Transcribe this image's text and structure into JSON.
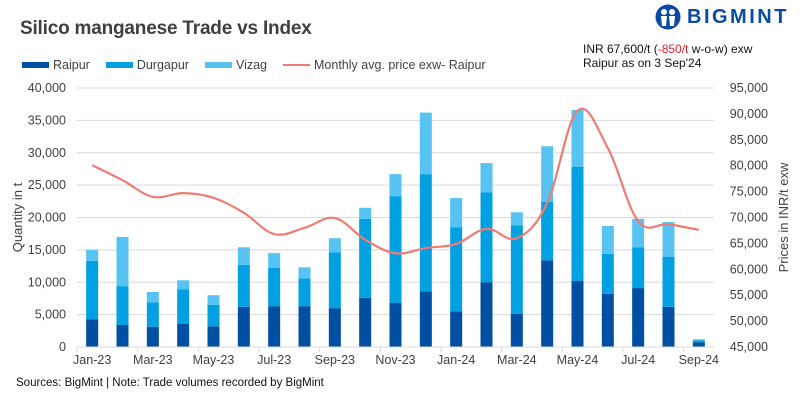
{
  "header": {
    "title": "Silico manganese Trade vs Index",
    "logo_text": "BIGMINT",
    "note_line1_prefix": "INR 67,600/t (",
    "note_line1_change": "-850/t",
    "note_line1_suffix": " w-o-w) exw",
    "note_line2": "Raipur as on 3 Sep'24"
  },
  "footer": {
    "text": "Sources: BigMint | Note: Trade volumes recorded by BigMint"
  },
  "colors": {
    "raipur": "#004fa3",
    "durgapur": "#00a0e3",
    "vizag": "#56c3f2",
    "price_line": "#f07b72",
    "brand": "#0a4aa6",
    "grid": "#d9d9d9"
  },
  "chart_data": {
    "type": "bar",
    "stacked": true,
    "title": "Silico manganese Trade vs Index",
    "categories": [
      "Jan-23",
      "Feb-23",
      "Mar-23",
      "Apr-23",
      "May-23",
      "Jun-23",
      "Jul-23",
      "Aug-23",
      "Sep-23",
      "Oct-23",
      "Nov-23",
      "Dec-23",
      "Jan-24",
      "Feb-24",
      "Mar-24",
      "Apr-24",
      "May-24",
      "Jun-24",
      "Jul-24",
      "Aug-24",
      "Sep-24"
    ],
    "x_tick_labels": [
      "Jan-23",
      "Mar-23",
      "May-23",
      "Jul-23",
      "Sep-23",
      "Nov-23",
      "Jan-24",
      "Mar-24",
      "May-24",
      "Jul-24",
      "Sep-24"
    ],
    "series": [
      {
        "name": "Raipur",
        "type": "bar",
        "axis": "left",
        "values": [
          4300,
          3400,
          3100,
          3600,
          3200,
          6200,
          6300,
          6300,
          6000,
          7600,
          6800,
          8600,
          5500,
          10000,
          5100,
          13400,
          10200,
          8200,
          9100,
          6200,
          700
        ]
      },
      {
        "name": "Durgapur",
        "type": "bar",
        "axis": "left",
        "values": [
          9000,
          6000,
          3800,
          5300,
          3300,
          6500,
          5900,
          4300,
          8600,
          12200,
          16500,
          18100,
          13000,
          13900,
          13700,
          9000,
          17600,
          6200,
          6300,
          7700,
          300
        ]
      },
      {
        "name": "Vizag",
        "type": "bar",
        "axis": "left",
        "values": [
          1700,
          7600,
          1600,
          1400,
          1500,
          2700,
          2300,
          1700,
          2200,
          1700,
          3400,
          9500,
          4500,
          4500,
          2000,
          8600,
          8800,
          4300,
          4400,
          5400,
          200
        ]
      },
      {
        "name": "Monthly avg. price exw- Raipur",
        "type": "line",
        "axis": "right",
        "values": [
          80100,
          77200,
          74000,
          74700,
          73800,
          70900,
          66800,
          68000,
          69900,
          65700,
          63100,
          64100,
          64900,
          67800,
          66000,
          72800,
          90600,
          83400,
          69300,
          68700,
          67600
        ]
      }
    ],
    "ylabel": "Quantity in t",
    "ylim": [
      0,
      40000
    ],
    "yticks": [
      0,
      5000,
      10000,
      15000,
      20000,
      25000,
      30000,
      35000,
      40000
    ],
    "ytick_labels": [
      "0",
      "5,000",
      "10,000",
      "15,000",
      "20,000",
      "25,000",
      "30,000",
      "35,000",
      "40,000"
    ],
    "y2label": "Prices in INR/t exw",
    "y2lim": [
      45000,
      95000
    ],
    "y2ticks": [
      45000,
      50000,
      55000,
      60000,
      65000,
      70000,
      75000,
      80000,
      85000,
      90000,
      95000
    ],
    "y2tick_labels": [
      "45,000",
      "50,000",
      "55,000",
      "60,000",
      "65,000",
      "70,000",
      "75,000",
      "80,000",
      "85,000",
      "90,000",
      "95,000"
    ],
    "grid": true,
    "legend_position": "top-left",
    "legend": [
      "Raipur",
      "Durgapur",
      "Vizag",
      "Monthly avg. price exw- Raipur"
    ]
  }
}
